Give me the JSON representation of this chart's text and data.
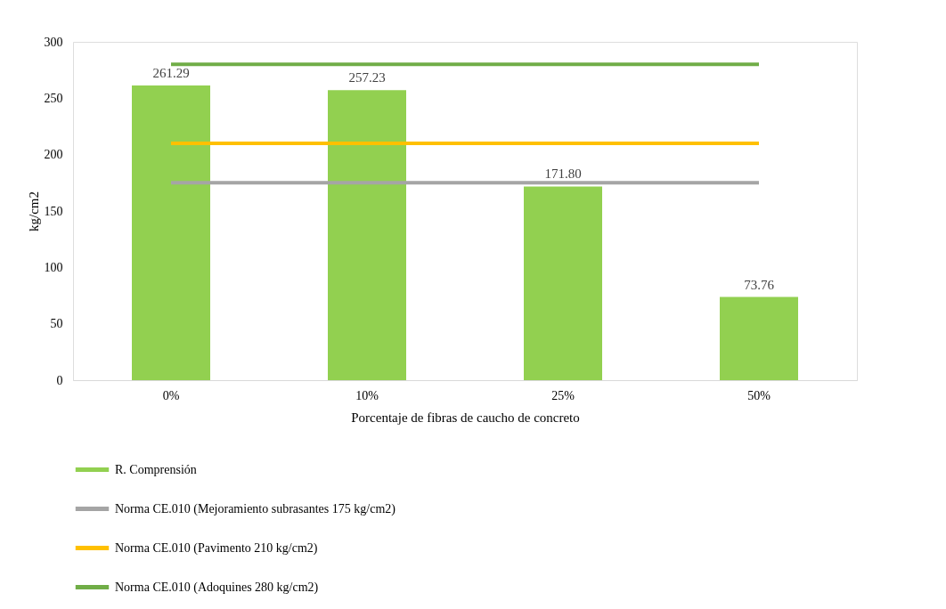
{
  "chart_data": {
    "type": "bar",
    "xlabel": "Porcentaje de fibras de caucho de concreto",
    "ylabel": "kg/cm2",
    "categories": [
      "0%",
      "10%",
      "25%",
      "50%"
    ],
    "series": [
      {
        "name": "R. Comprensión",
        "color": "#92d050",
        "values": [
          261.29,
          257.23,
          171.8,
          73.76
        ],
        "value_labels": [
          "261.29",
          "257.23",
          "171.80",
          "73.76"
        ]
      },
      {
        "name": "Norma CE.010 (Mejoramiento subrasantes 175 kg/cm2)",
        "type": "line",
        "color": "#a5a5a5",
        "values": [
          175,
          175,
          175,
          175
        ]
      },
      {
        "name": "Norma CE.010 (Pavimento 210 kg/cm2)",
        "type": "line",
        "color": "#ffc000",
        "values": [
          210,
          210,
          210,
          210
        ]
      },
      {
        "name": "Norma CE.010 (Adoquines 280 kg/cm2)",
        "type": "line",
        "color": "#70ad47",
        "values": [
          280,
          280,
          280,
          280
        ]
      }
    ],
    "ylim": [
      0,
      300
    ],
    "yticks": [
      0,
      50,
      100,
      150,
      200,
      250,
      300
    ],
    "grid": false,
    "legend": "bottom",
    "marker": "none",
    "line_style": "solid"
  }
}
